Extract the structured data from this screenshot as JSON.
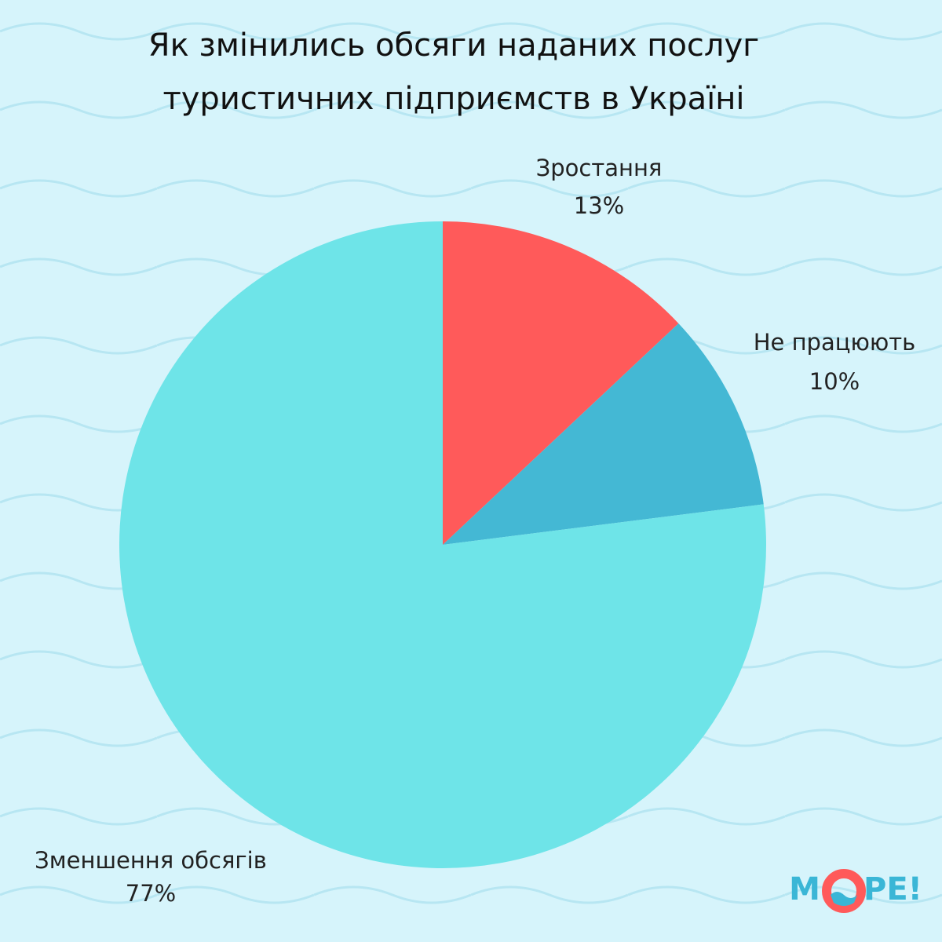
{
  "chart_data": {
    "type": "pie",
    "title": [
      "Як змінились обсяги наданих послуг",
      "туристичних підприємств в Україні"
    ],
    "categories": [
      "Зростання",
      "Не працюють",
      "Зменшення обсягів"
    ],
    "values": [
      13,
      10,
      77
    ],
    "value_labels": [
      "13%",
      "10%",
      "77%"
    ],
    "colors": [
      "#ff5a5a",
      "#44b8d4",
      "#6ee4e8"
    ],
    "logo": [
      "М",
      "РЕ!"
    ]
  }
}
